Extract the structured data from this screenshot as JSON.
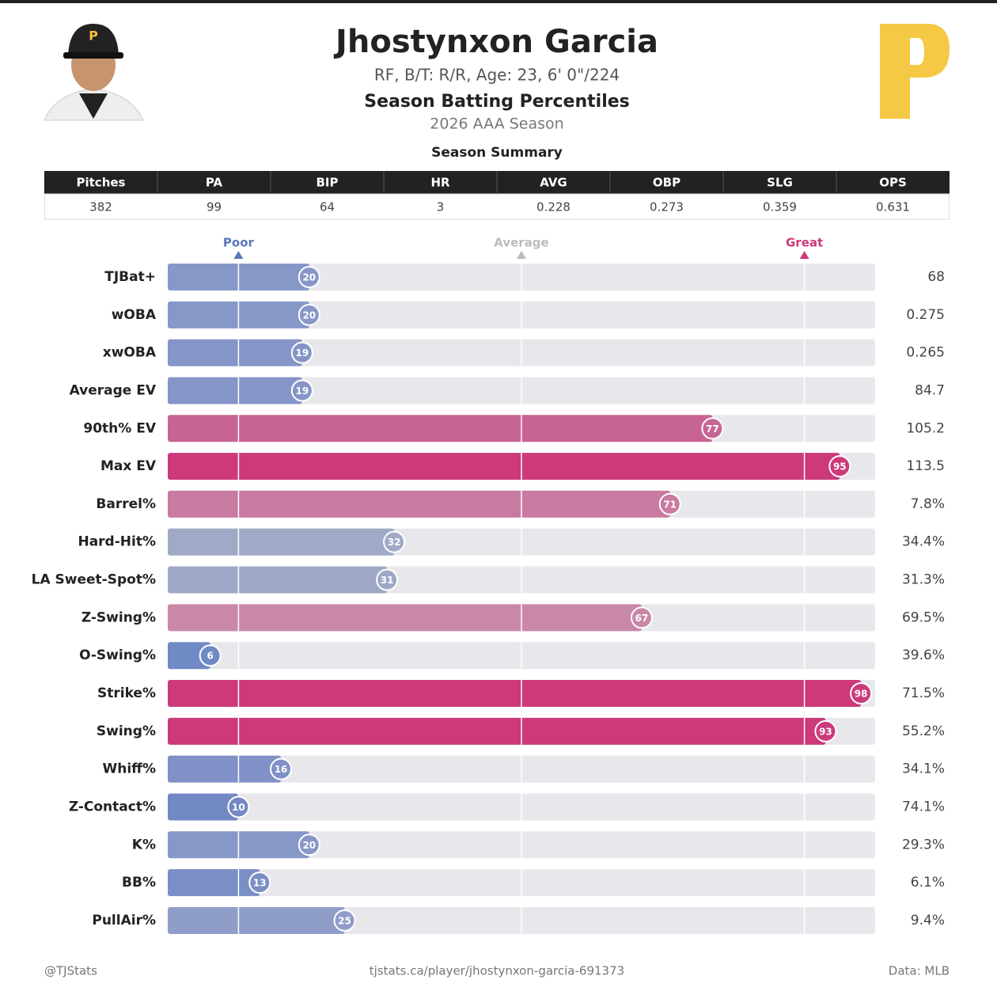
{
  "header": {
    "name": "Jhostynxon Garcia",
    "subtitle": "RF, B/T: R/R, Age: 23, 6' 0\"/224",
    "title": "Season Batting Percentiles",
    "season": "2026 AAA Season"
  },
  "summary": {
    "title": "Season Summary",
    "columns": [
      "Pitches",
      "PA",
      "BIP",
      "HR",
      "AVG",
      "OBP",
      "SLG",
      "OPS"
    ],
    "values": [
      "382",
      "99",
      "64",
      "3",
      "0.228",
      "0.273",
      "0.359",
      "0.631"
    ]
  },
  "chart_data": {
    "type": "bar",
    "orientation": "horizontal",
    "categories": [
      "TJBat+",
      "wOBA",
      "xwOBA",
      "Average EV",
      "90th% EV",
      "Max EV",
      "Barrel%",
      "Hard-Hit%",
      "LA Sweet-Spot%",
      "Z-Swing%",
      "O-Swing%",
      "Strike%",
      "Swing%",
      "Whiff%",
      "Z-Contact%",
      "K%",
      "BB%",
      "PullAir%"
    ],
    "values": [
      20,
      20,
      19,
      19,
      77,
      95,
      71,
      32,
      31,
      67,
      6,
      98,
      93,
      16,
      10,
      20,
      13,
      25
    ],
    "colors": [
      "#8797c8",
      "#8797c8",
      "#8595c8",
      "#8595c8",
      "#c86494",
      "#cc3a7c",
      "#c87aa0",
      "#a0aac6",
      "#9ea8c6",
      "#c988a8",
      "#6f8ac4",
      "#cc3a7c",
      "#cc3a7c",
      "#7f91c6",
      "#7389c5",
      "#8797c8",
      "#7b8fc6",
      "#8f9dc9"
    ],
    "stat_values": [
      "68",
      "0.275",
      "0.265",
      "84.7",
      "105.2",
      "113.5",
      "7.8%",
      "34.4%",
      "31.3%",
      "69.5%",
      "39.6%",
      "71.5%",
      "55.2%",
      "34.1%",
      "74.1%",
      "29.3%",
      "6.1%",
      "9.4%"
    ],
    "xlim": [
      0,
      100
    ],
    "xticks": [
      {
        "value": 10,
        "label": "Poor"
      },
      {
        "value": 50,
        "label": "Average"
      },
      {
        "value": 90,
        "label": "Great"
      }
    ],
    "xtick_colors": [
      "#5a78b8",
      "#bbbbbb",
      "#cc3a7c"
    ],
    "track_color": "#e8e8ec"
  },
  "footer": {
    "left": "@TJStats",
    "center": "tjstats.ca/player/jhostynxon-garcia-691373",
    "right": "Data: MLB"
  }
}
